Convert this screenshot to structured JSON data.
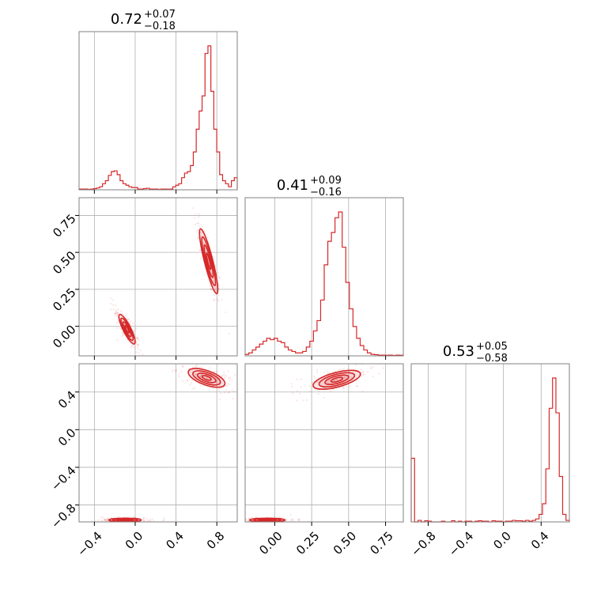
{
  "chart_data": {
    "type": "scatter",
    "color": "#d62728",
    "parameters": [
      {
        "index": 0,
        "title": {
          "value": "0.72",
          "plus": "+0.07",
          "minus": "−0.18"
        },
        "range": [
          -0.55,
          1.0
        ],
        "ticks": [
          -0.4,
          0.0,
          0.4,
          0.8
        ],
        "tick_labels": [
          "−0.4",
          "0.0",
          "0.4",
          "0.8"
        ]
      },
      {
        "index": 1,
        "title": {
          "value": "0.41",
          "plus": "+0.09",
          "minus": "−0.16"
        },
        "range": [
          -0.2,
          0.87
        ],
        "ticks": [
          0.0,
          0.25,
          0.5,
          0.75
        ],
        "tick_labels": [
          "0.00",
          "0.25",
          "0.50",
          "0.75"
        ]
      },
      {
        "index": 2,
        "title": {
          "value": "0.53",
          "plus": "+0.05",
          "minus": "−0.58"
        },
        "range": [
          -0.98,
          0.7
        ],
        "ticks": [
          -0.8,
          -0.4,
          0.0,
          0.4
        ],
        "tick_labels": [
          "−0.8",
          "−0.4",
          "0.0",
          "0.4"
        ]
      }
    ],
    "histograms": [
      {
        "param": 0,
        "bin_edges_range": [
          -0.55,
          1.0
        ],
        "counts": [
          0.005,
          0.005,
          0.005,
          0.003,
          0.005,
          0.008,
          0.012,
          0.02,
          0.04,
          0.06,
          0.095,
          0.12,
          0.125,
          0.1,
          0.06,
          0.04,
          0.03,
          0.02,
          0.015,
          0.015,
          0.005,
          0.005,
          0.008,
          0.01,
          0.005,
          0.005,
          0.005,
          0.003,
          0.005,
          0.005,
          0.004,
          0.005,
          0.02,
          0.03,
          0.04,
          0.08,
          0.11,
          0.12,
          0.16,
          0.25,
          0.4,
          0.52,
          0.62,
          0.9,
          0.95,
          0.65,
          0.4,
          0.25,
          0.1,
          0.06,
          0.04,
          0.02,
          0.06,
          0.08
        ]
      },
      {
        "param": 1,
        "bin_edges_range": [
          -0.2,
          0.87
        ],
        "counts": [
          0.01,
          0.02,
          0.04,
          0.06,
          0.08,
          0.1,
          0.12,
          0.11,
          0.12,
          0.1,
          0.09,
          0.06,
          0.04,
          0.03,
          0.02,
          0.02,
          0.03,
          0.06,
          0.1,
          0.17,
          0.24,
          0.38,
          0.62,
          0.78,
          0.84,
          0.94,
          0.98,
          0.74,
          0.5,
          0.32,
          0.2,
          0.12,
          0.07,
          0.04,
          0.02,
          0.01,
          0.008,
          0.005,
          0.005,
          0.004,
          0.005,
          0.003,
          0.005,
          0.004
        ]
      },
      {
        "param": 2,
        "bin_edges_range": [
          -0.98,
          0.7
        ],
        "counts": [
          0.42,
          0.0,
          0.01,
          0.0,
          0.008,
          0.005,
          0.0,
          0.0,
          0.0,
          0.005,
          0.0,
          0.0,
          0.008,
          0.0,
          0.005,
          0.0,
          0.005,
          0.005,
          0.0,
          0.005,
          0.008,
          0.005,
          0.005,
          0.0,
          0.008,
          0.005,
          0.005,
          0.0,
          0.005,
          0.005,
          0.01,
          0.008,
          0.008,
          0.005,
          0.01,
          0.005,
          0.01,
          0.02,
          0.05,
          0.12,
          0.35,
          0.75,
          0.95,
          0.72,
          0.3,
          0.05,
          0.01
        ]
      }
    ],
    "joint_blobs": [
      {
        "x_param": 0,
        "y_param": 1,
        "cx": 0.72,
        "cy": 0.44,
        "sx": 0.045,
        "sy": 0.11,
        "rho": -0.88
      },
      {
        "x_param": 0,
        "y_param": 1,
        "cx": -0.08,
        "cy": -0.02,
        "sx": 0.04,
        "sy": 0.05,
        "rho": -0.85
      },
      {
        "x_param": 0,
        "y_param": 2,
        "cx": 0.7,
        "cy": 0.55,
        "sx": 0.09,
        "sy": 0.05,
        "rho": -0.6
      },
      {
        "x_param": 0,
        "y_param": 2,
        "cx": -0.1,
        "cy": -0.96,
        "sx": 0.08,
        "sy": 0.01,
        "rho": 0.0
      },
      {
        "x_param": 1,
        "y_param": 2,
        "cx": 0.42,
        "cy": 0.53,
        "sx": 0.08,
        "sy": 0.05,
        "rho": 0.6
      },
      {
        "x_param": 1,
        "y_param": 2,
        "cx": -0.05,
        "cy": -0.96,
        "sx": 0.06,
        "sy": 0.01,
        "rho": 0.0
      }
    ],
    "grid": true
  }
}
